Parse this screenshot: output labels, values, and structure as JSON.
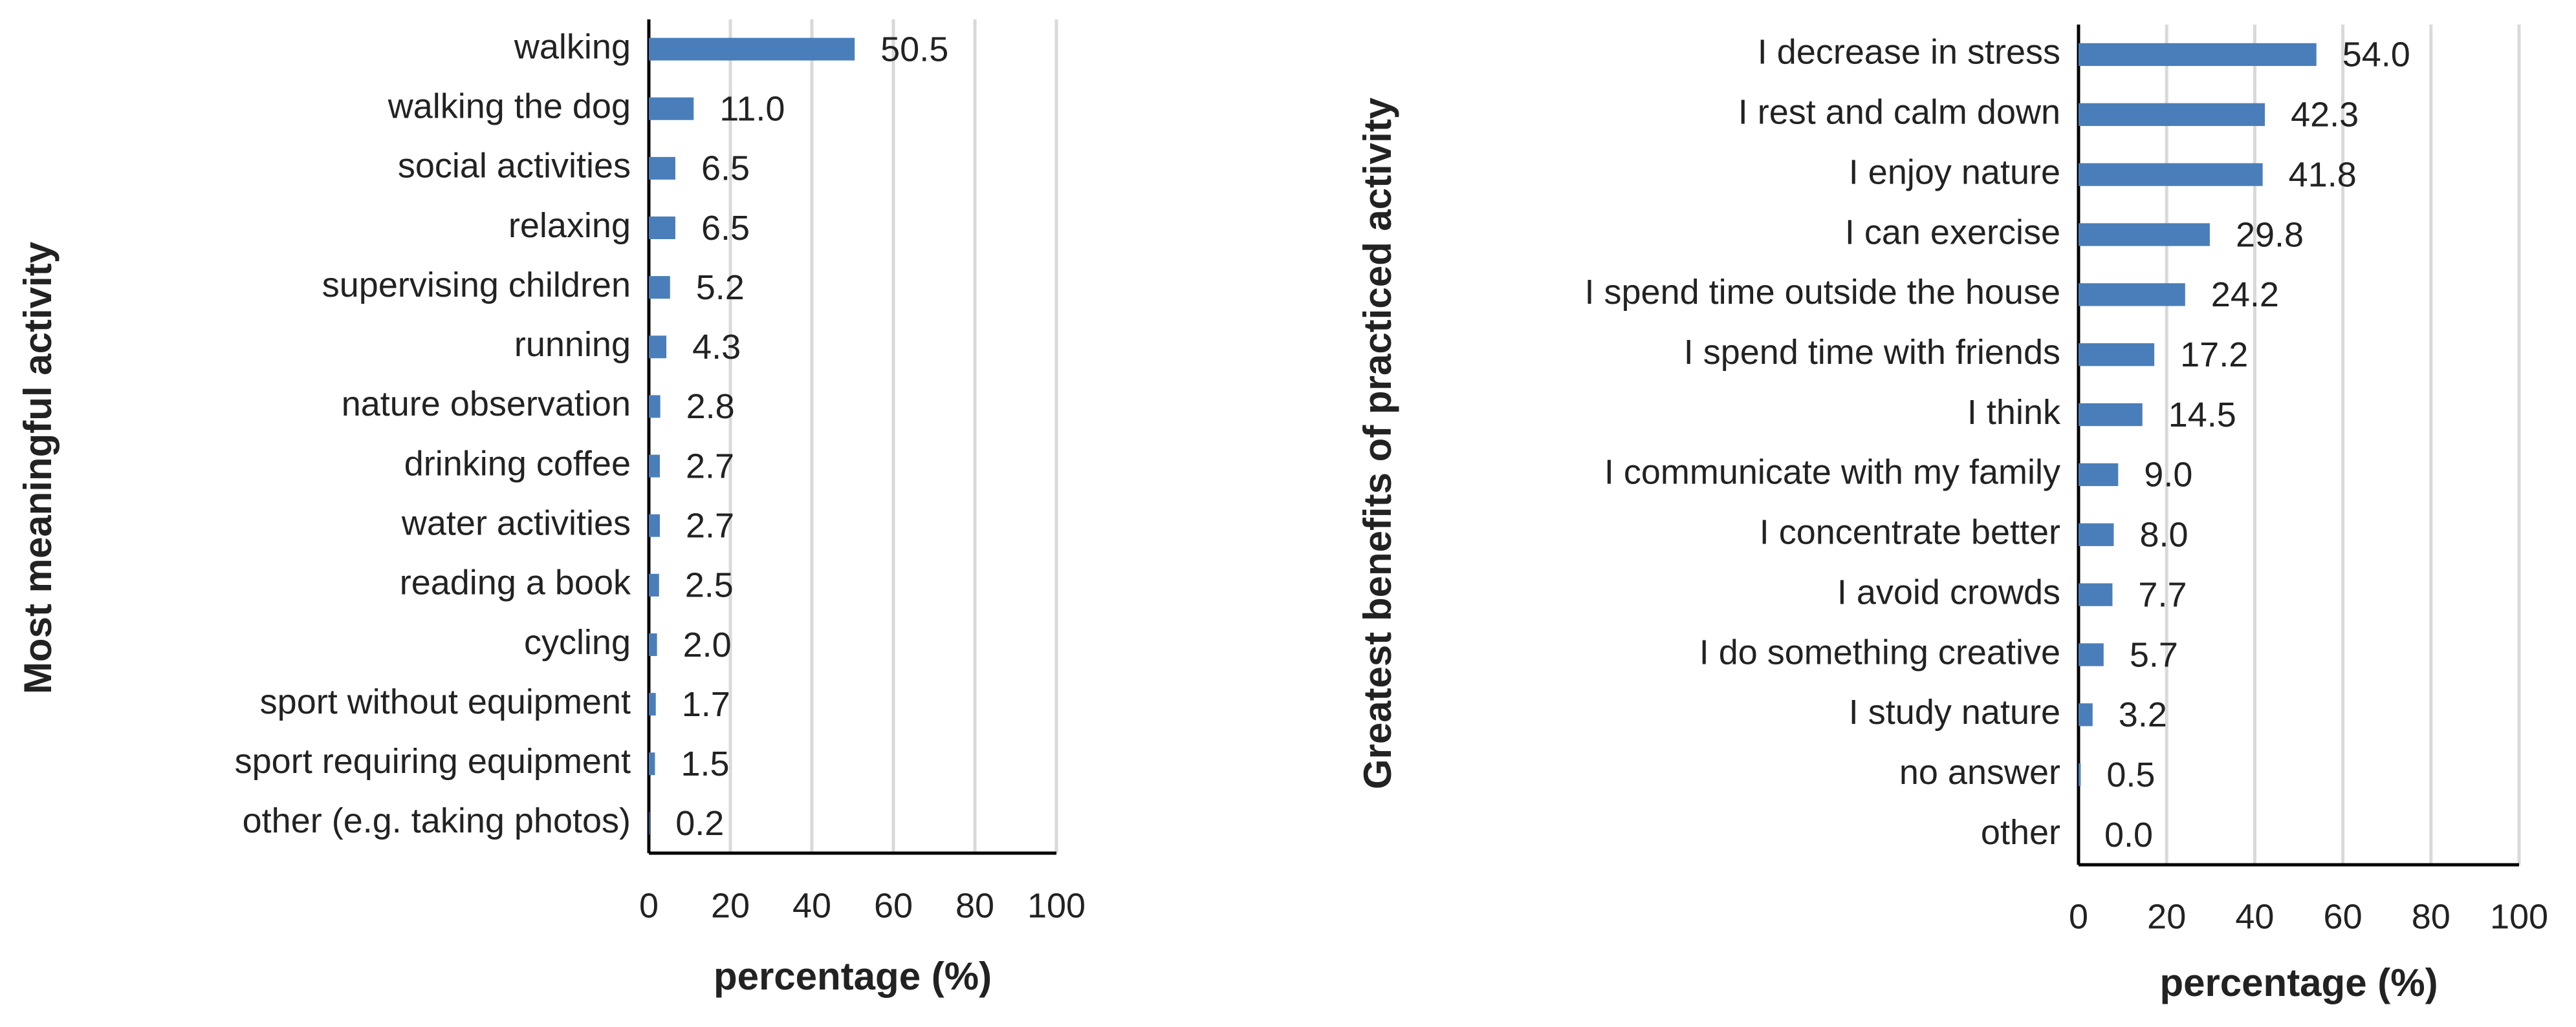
{
  "chart_data": [
    {
      "type": "barh",
      "ylabel": "Most meaningful activity",
      "xlabel": "percentage (%)",
      "categories": [
        "walking",
        "walking the dog",
        "social activities",
        "relaxing",
        "supervising children",
        "running",
        "nature observation",
        "drinking coffee",
        "water activities",
        "reading a book",
        "cycling",
        "sport without equipment",
        "sport requiring equipment",
        "other (e.g. taking photos)"
      ],
      "values": [
        50.5,
        11.0,
        6.5,
        6.5,
        5.2,
        4.3,
        2.8,
        2.7,
        2.7,
        2.5,
        2.0,
        1.7,
        1.5,
        0.2
      ],
      "value_labels": [
        "50.5",
        "11.0",
        "6.5",
        "6.5",
        "5.2",
        "4.3",
        "2.8",
        "2.7",
        "2.7",
        "2.5",
        "2.0",
        "1.7",
        "1.5",
        "0.2"
      ],
      "color": "#4a7ebb",
      "xlim": [
        0,
        100
      ],
      "xticks": [
        0,
        20,
        40,
        60,
        80,
        100
      ],
      "grid": true
    },
    {
      "type": "barh",
      "ylabel": "Greatest benefits of practiced  activity",
      "xlabel": "percentage (%)",
      "categories": [
        "I decrease in stress",
        "I rest and calm down",
        "I enjoy nature",
        "I can exercise",
        "I spend time outside the house",
        "I spend time with friends",
        "I think",
        "I communicate with my family",
        "I concentrate better",
        "I avoid crowds",
        "I do something creative",
        "I study nature",
        "no answer",
        "other"
      ],
      "values": [
        54.0,
        42.3,
        41.8,
        29.8,
        24.2,
        17.2,
        14.5,
        9.0,
        8.0,
        7.7,
        5.7,
        3.2,
        0.5,
        0.0
      ],
      "value_labels": [
        "54.0",
        "42.3",
        "41.8",
        "29.8",
        "24.2",
        "17.2",
        "14.5",
        "9.0",
        "8.0",
        "7.7",
        "5.7",
        "3.2",
        "0.5",
        "0.0"
      ],
      "color": "#4a7ebb",
      "xlim": [
        0,
        100
      ],
      "xticks": [
        0,
        20,
        40,
        60,
        80,
        100
      ],
      "grid": true
    }
  ]
}
